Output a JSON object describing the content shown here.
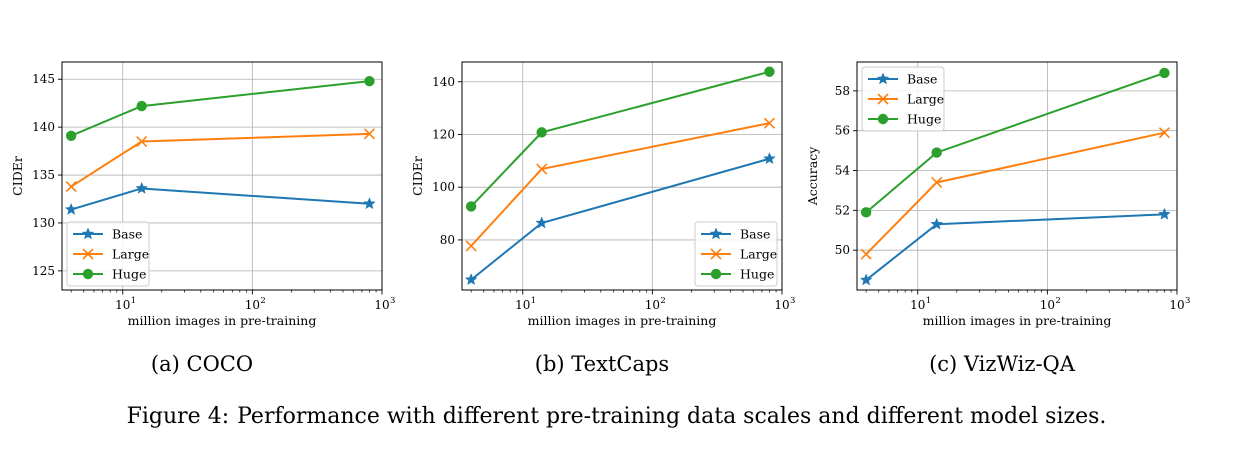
{
  "figure_caption": {
    "label": "Figure 4:",
    "text": "Performance with different pre-training data scales and different model sizes."
  },
  "colors": {
    "Base": "#1f77b4",
    "Large": "#ff7f0e",
    "Huge": "#2ca02c"
  },
  "chart_data": [
    {
      "type": "line",
      "subcaption": "(a) COCO",
      "xlabel": "million images in pre-training",
      "ylabel": "CIDEr",
      "xscale": "log",
      "xlim": [
        3.4,
        1000
      ],
      "ylim": [
        123,
        146.8
      ],
      "yticks": [
        125,
        130,
        135,
        140,
        145
      ],
      "xticks": [
        10,
        100,
        1000
      ],
      "xtick_labels": [
        "10",
        "10",
        "10"
      ],
      "xtick_exponents": [
        "1",
        "2",
        "3"
      ],
      "grid": true,
      "legend": "lower-left",
      "x": [
        4,
        14,
        800
      ],
      "series": [
        {
          "name": "Base",
          "marker": "star",
          "values": [
            131.4,
            133.6,
            132.0
          ]
        },
        {
          "name": "Large",
          "marker": "x",
          "values": [
            133.8,
            138.5,
            139.3
          ]
        },
        {
          "name": "Huge",
          "marker": "circle",
          "values": [
            139.1,
            142.2,
            144.8
          ]
        }
      ]
    },
    {
      "type": "line",
      "subcaption": "(b) TextCaps",
      "xlabel": "million images in pre-training",
      "ylabel": "CIDEr",
      "xscale": "log",
      "xlim": [
        3.4,
        1000
      ],
      "ylim": [
        61,
        147.5
      ],
      "yticks": [
        80,
        100,
        120,
        140
      ],
      "xticks": [
        10,
        100,
        1000
      ],
      "xtick_labels": [
        "10",
        "10",
        "10"
      ],
      "xtick_exponents": [
        "1",
        "2",
        "3"
      ],
      "grid": true,
      "legend": "lower-right",
      "x": [
        4,
        14,
        800
      ],
      "series": [
        {
          "name": "Base",
          "marker": "star",
          "values": [
            64.9,
            86.4,
            110.8
          ]
        },
        {
          "name": "Large",
          "marker": "x",
          "values": [
            77.7,
            106.9,
            124.3
          ]
        },
        {
          "name": "Huge",
          "marker": "circle",
          "values": [
            92.7,
            120.8,
            143.8
          ]
        }
      ]
    },
    {
      "type": "line",
      "subcaption": "(c) VizWiz-QA",
      "xlabel": "million images in pre-training",
      "ylabel": "Accuracy",
      "xscale": "log",
      "xlim": [
        3.4,
        1000
      ],
      "ylim": [
        48,
        59.45
      ],
      "yticks": [
        50,
        52,
        54,
        56,
        58
      ],
      "xticks": [
        10,
        100,
        1000
      ],
      "xtick_labels": [
        "10",
        "10",
        "10"
      ],
      "xtick_exponents": [
        "1",
        "2",
        "3"
      ],
      "grid": true,
      "legend": "upper-left",
      "x": [
        4,
        14,
        800
      ],
      "series": [
        {
          "name": "Base",
          "marker": "star",
          "values": [
            48.5,
            51.3,
            51.8
          ]
        },
        {
          "name": "Large",
          "marker": "x",
          "values": [
            49.8,
            53.4,
            55.9
          ]
        },
        {
          "name": "Huge",
          "marker": "circle",
          "values": [
            51.9,
            54.9,
            58.9
          ]
        }
      ]
    }
  ]
}
